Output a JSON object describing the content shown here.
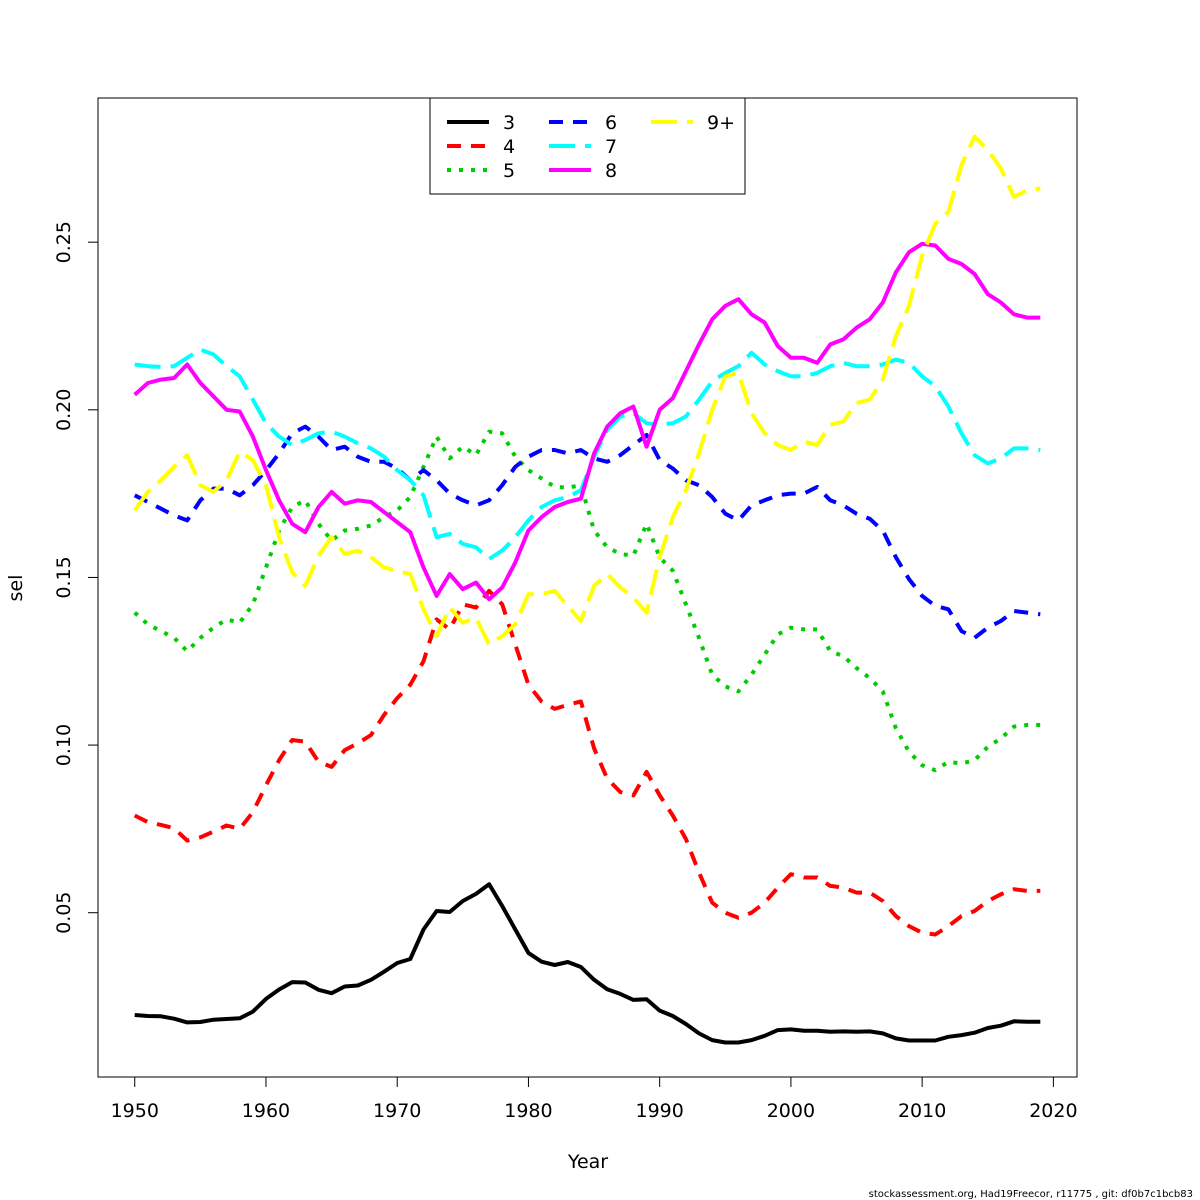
{
  "footer": "stockassessment.org, Had19Freecor, r11775 , git: df0b7c1bcb83",
  "chart_data": {
    "type": "line",
    "title": "",
    "xlabel": "Year",
    "ylabel": "sel",
    "xlim": [
      1947.2,
      2021.8
    ],
    "ylim": [
      0.001,
      0.293
    ],
    "x_ticks": [
      1950,
      1960,
      1970,
      1980,
      1990,
      2000,
      2010,
      2020
    ],
    "y_ticks": [
      0.05,
      0.1,
      0.15,
      0.2,
      0.25
    ],
    "y_tick_labels": [
      "0.05",
      "0.10",
      "0.15",
      "0.20",
      "0.25"
    ],
    "grid": false,
    "legend_position": "top-center",
    "x": [
      1950,
      1951,
      1952,
      1953,
      1954,
      1955,
      1956,
      1957,
      1958,
      1959,
      1960,
      1961,
      1962,
      1963,
      1964,
      1965,
      1966,
      1967,
      1968,
      1969,
      1970,
      1971,
      1972,
      1973,
      1974,
      1975,
      1976,
      1977,
      1978,
      1979,
      1980,
      1981,
      1982,
      1983,
      1984,
      1985,
      1986,
      1987,
      1988,
      1989,
      1990,
      1991,
      1992,
      1993,
      1994,
      1995,
      1996,
      1997,
      1998,
      1999,
      2000,
      2001,
      2002,
      2003,
      2004,
      2005,
      2006,
      2007,
      2008,
      2009,
      2010,
      2011,
      2012,
      2013,
      2014,
      2015,
      2016,
      2017,
      2018,
      2019
    ],
    "series": [
      {
        "name": "3",
        "color": "#000000",
        "dash": "solid",
        "values": [
          0.0195,
          0.0192,
          0.0191,
          0.0184,
          0.0173,
          0.0174,
          0.0181,
          0.0183,
          0.0185,
          0.0205,
          0.0243,
          0.0271,
          0.0293,
          0.0292,
          0.027,
          0.026,
          0.028,
          0.0283,
          0.03,
          0.0324,
          0.035,
          0.0362,
          0.045,
          0.0505,
          0.0502,
          0.0535,
          0.0556,
          0.0585,
          0.052,
          0.045,
          0.038,
          0.0354,
          0.0344,
          0.0353,
          0.0338,
          0.03,
          0.0272,
          0.0258,
          0.024,
          0.0242,
          0.0208,
          0.0192,
          0.0168,
          0.014,
          0.012,
          0.0113,
          0.0113,
          0.012,
          0.0133,
          0.015,
          0.0152,
          0.0148,
          0.0148,
          0.0145,
          0.0146,
          0.0145,
          0.0146,
          0.014,
          0.0125,
          0.0119,
          0.0119,
          0.0119,
          0.013,
          0.0135,
          0.0142,
          0.0156,
          0.0163,
          0.0176,
          0.0175,
          0.0175
        ]
      },
      {
        "name": "4",
        "color": "#ff0000",
        "dash": "dashed",
        "values": [
          0.079,
          0.077,
          0.0762,
          0.0752,
          0.0715,
          0.0725,
          0.0742,
          0.076,
          0.075,
          0.08,
          0.088,
          0.0955,
          0.1015,
          0.101,
          0.095,
          0.0935,
          0.0985,
          0.1005,
          0.103,
          0.109,
          0.114,
          0.118,
          0.125,
          0.1375,
          0.1345,
          0.142,
          0.141,
          0.146,
          0.142,
          0.13,
          0.118,
          0.113,
          0.1108,
          0.112,
          0.113,
          0.099,
          0.09,
          0.086,
          0.085,
          0.092,
          0.085,
          0.079,
          0.072,
          0.062,
          0.053,
          0.05,
          0.0485,
          0.05,
          0.053,
          0.0575,
          0.0615,
          0.0605,
          0.0605,
          0.058,
          0.0575,
          0.056,
          0.056,
          0.0535,
          0.049,
          0.046,
          0.044,
          0.0435,
          0.046,
          0.049,
          0.0505,
          0.0535,
          0.0555,
          0.057,
          0.0565,
          0.0565
        ]
      },
      {
        "name": "5",
        "color": "#00cd00",
        "dash": "dotted",
        "values": [
          0.1395,
          0.136,
          0.134,
          0.132,
          0.128,
          0.132,
          0.135,
          0.1375,
          0.1365,
          0.142,
          0.153,
          0.164,
          0.171,
          0.173,
          0.166,
          0.161,
          0.164,
          0.1645,
          0.1655,
          0.168,
          0.17,
          0.174,
          0.183,
          0.192,
          0.1855,
          0.189,
          0.1865,
          0.1935,
          0.193,
          0.186,
          0.182,
          0.1795,
          0.177,
          0.1768,
          0.1775,
          0.164,
          0.159,
          0.157,
          0.1565,
          0.166,
          0.156,
          0.152,
          0.142,
          0.132,
          0.121,
          0.1175,
          0.116,
          0.121,
          0.127,
          0.133,
          0.135,
          0.1345,
          0.1345,
          0.128,
          0.1265,
          0.123,
          0.12,
          0.116,
          0.105,
          0.098,
          0.094,
          0.0925,
          0.095,
          0.0945,
          0.0955,
          0.0995,
          0.102,
          0.1055,
          0.106,
          0.106
        ]
      },
      {
        "name": "6",
        "color": "#0000ff",
        "dash": "dashed",
        "values": [
          0.1745,
          0.1725,
          0.1705,
          0.1685,
          0.167,
          0.173,
          0.1765,
          0.1765,
          0.1745,
          0.1775,
          0.182,
          0.187,
          0.193,
          0.195,
          0.192,
          0.188,
          0.189,
          0.186,
          0.1845,
          0.1845,
          0.1825,
          0.179,
          0.182,
          0.179,
          0.175,
          0.173,
          0.1715,
          0.173,
          0.1775,
          0.183,
          0.186,
          0.188,
          0.188,
          0.187,
          0.188,
          0.1855,
          0.1845,
          0.1865,
          0.1895,
          0.1925,
          0.185,
          0.1825,
          0.179,
          0.1775,
          0.174,
          0.169,
          0.167,
          0.1715,
          0.173,
          0.1745,
          0.175,
          0.175,
          0.177,
          0.173,
          0.1715,
          0.169,
          0.1675,
          0.164,
          0.156,
          0.1495,
          0.1445,
          0.1415,
          0.1405,
          0.134,
          0.132,
          0.135,
          0.137,
          0.14,
          0.1395,
          0.139
        ]
      },
      {
        "name": "7",
        "color": "#00ffff",
        "dash": "longdash",
        "values": [
          0.2135,
          0.213,
          0.2128,
          0.213,
          0.2155,
          0.218,
          0.2165,
          0.213,
          0.21,
          0.203,
          0.196,
          0.192,
          0.1895,
          0.191,
          0.193,
          0.1935,
          0.192,
          0.19,
          0.1885,
          0.186,
          0.182,
          0.179,
          0.1745,
          0.162,
          0.163,
          0.16,
          0.159,
          0.1555,
          0.158,
          0.162,
          0.167,
          0.171,
          0.173,
          0.174,
          0.176,
          0.186,
          0.194,
          0.198,
          0.199,
          0.196,
          0.1955,
          0.196,
          0.198,
          0.203,
          0.2085,
          0.211,
          0.213,
          0.217,
          0.2135,
          0.2115,
          0.21,
          0.21,
          0.211,
          0.213,
          0.214,
          0.213,
          0.213,
          0.2135,
          0.215,
          0.214,
          0.21,
          0.207,
          0.201,
          0.193,
          0.1865,
          0.184,
          0.1855,
          0.1885,
          0.1885,
          0.188
        ]
      },
      {
        "name": "8",
        "color": "#ff00ff",
        "dash": "solid",
        "values": [
          0.2045,
          0.208,
          0.209,
          0.2095,
          0.2135,
          0.208,
          0.204,
          0.2,
          0.1995,
          0.192,
          0.182,
          0.173,
          0.166,
          0.1635,
          0.171,
          0.1755,
          0.172,
          0.173,
          0.1725,
          0.1695,
          0.1665,
          0.1635,
          0.153,
          0.1445,
          0.151,
          0.1465,
          0.1485,
          0.1435,
          0.147,
          0.1545,
          0.164,
          0.168,
          0.171,
          0.1725,
          0.1735,
          0.187,
          0.195,
          0.199,
          0.201,
          0.189,
          0.2,
          0.2035,
          0.2115,
          0.2195,
          0.227,
          0.231,
          0.233,
          0.2285,
          0.226,
          0.219,
          0.2155,
          0.2155,
          0.214,
          0.2195,
          0.221,
          0.2245,
          0.227,
          0.232,
          0.241,
          0.247,
          0.2495,
          0.249,
          0.245,
          0.2435,
          0.2405,
          0.2345,
          0.232,
          0.2285,
          0.2275,
          0.2275
        ]
      },
      {
        "name": "9+",
        "color": "#ffff00",
        "dash": "longdash",
        "values": [
          0.17,
          0.1755,
          0.179,
          0.183,
          0.1865,
          0.1775,
          0.1755,
          0.179,
          0.1875,
          0.185,
          0.1775,
          0.162,
          0.1515,
          0.1475,
          0.1565,
          0.162,
          0.157,
          0.158,
          0.156,
          0.153,
          0.152,
          0.151,
          0.1405,
          0.1325,
          0.141,
          0.1365,
          0.138,
          0.13,
          0.1325,
          0.136,
          0.145,
          0.145,
          0.146,
          0.1415,
          0.137,
          0.1475,
          0.151,
          0.147,
          0.144,
          0.1395,
          0.156,
          0.168,
          0.176,
          0.187,
          0.2,
          0.21,
          0.211,
          0.199,
          0.193,
          0.1895,
          0.188,
          0.1905,
          0.1895,
          0.1955,
          0.1965,
          0.202,
          0.203,
          0.209,
          0.222,
          0.231,
          0.246,
          0.2555,
          0.259,
          0.273,
          0.2815,
          0.2775,
          0.272,
          0.2635,
          0.2655,
          0.266
        ]
      }
    ]
  }
}
